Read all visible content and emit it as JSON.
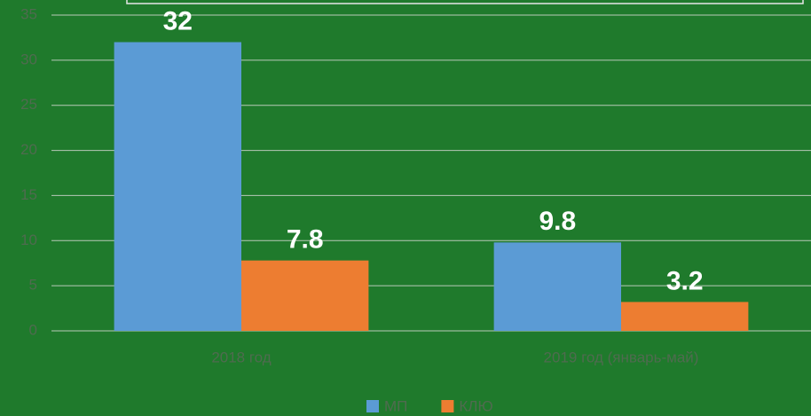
{
  "chart_data": {
    "type": "bar",
    "categories": [
      "2018 год",
      "2019 год (январь-май)"
    ],
    "series": [
      {
        "name": "МП",
        "color": "#5b9bd5",
        "values": [
          32,
          9.8
        ]
      },
      {
        "name": "КЛЮ",
        "color": "#ed7d31",
        "values": [
          7.8,
          3.2
        ]
      }
    ],
    "ylim": [
      0,
      35
    ],
    "yticks": [
      0,
      5,
      10,
      15,
      20,
      25,
      30,
      35
    ],
    "grid": true,
    "legend": "bottom"
  }
}
